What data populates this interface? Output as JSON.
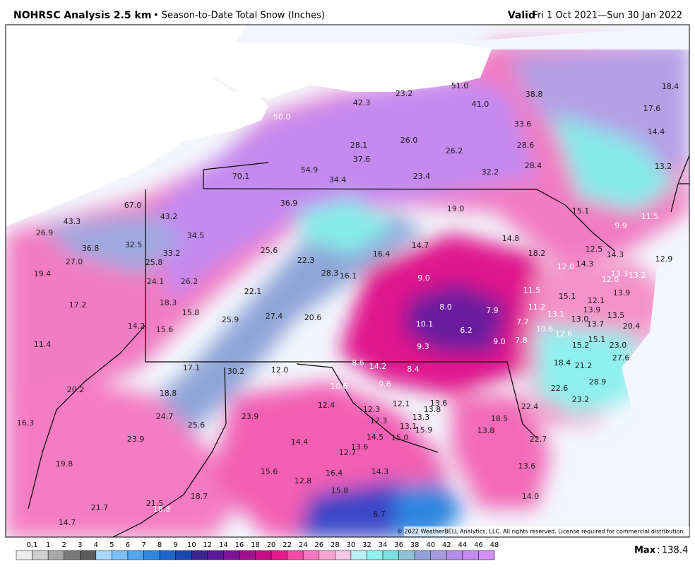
{
  "header": {
    "title": "NOHRSC Analysis 2.5 km",
    "subtitle": "• Season-to-Date Total Snow (Inches)",
    "valid_label": "Valid",
    "valid_range": "Fri 1 Oct 2021—Sun 30 Jan 2022"
  },
  "map": {
    "labels": [
      "18.4",
      "17.6",
      "14.4",
      "13.2",
      "51.0",
      "41.0",
      "38.8",
      "23.2",
      "42.3",
      "50.0",
      "33.6",
      "28.6",
      "28.4",
      "26.0",
      "26.2",
      "28.1",
      "37.6",
      "54.9",
      "34.4",
      "23.4",
      "32.2",
      "70.1",
      "67.0",
      "43.2",
      "36.9",
      "19.0",
      "15.1",
      "9.9",
      "11.5",
      "26.9",
      "43.3",
      "34.5",
      "36.8",
      "32.5",
      "33.2",
      "25.6",
      "22.3",
      "16.4",
      "14.7",
      "14.8",
      "18.2",
      "12.5",
      "14.3",
      "12.9",
      "27.0",
      "19.4",
      "25.8",
      "28.3",
      "16.1",
      "12.0",
      "14.3",
      "13.3",
      "13.2",
      "24.1",
      "26.2",
      "9.0",
      "12.0",
      "13.9",
      "17.2",
      "18.3",
      "22.1",
      "11.5",
      "15.1",
      "12.1",
      "13.9",
      "8.0",
      "7.9",
      "11.2",
      "13.1",
      "13.0",
      "13.5",
      "13.7",
      "15.8",
      "27.4",
      "20.6",
      "25.9",
      "14.2",
      "15.6",
      "10.1",
      "7.7",
      "6.2",
      "10.6",
      "12.6",
      "20.4",
      "15.1",
      "9.0",
      "7.8",
      "15.2",
      "23.0",
      "9.3",
      "11.4",
      "27.6",
      "8.6",
      "14.2",
      "18.4",
      "21.2",
      "17.1",
      "30.2",
      "12.0",
      "8.4",
      "28.9",
      "10.6",
      "9.6",
      "22.6",
      "20.2",
      "18.8",
      "23.2",
      "13.6",
      "12.4",
      "12.1",
      "12.3",
      "13.8",
      "22.4",
      "24.7",
      "23.9",
      "13.3",
      "12.3",
      "18.5",
      "16.3",
      "25.6",
      "13.1",
      "15.9",
      "13.8",
      "14.5",
      "15.0",
      "23.9",
      "14.4",
      "22.7",
      "12.7",
      "13.6",
      "19.8",
      "13.6",
      "15.6",
      "16.4",
      "14.3",
      "12.8",
      "15.8",
      "18.7",
      "14.0",
      "21.5",
      "18.8",
      "21.7",
      "6.7",
      "14.7"
    ],
    "copyright": "© 2022 WeatherBELL Analytics, LLC. All rights reserved. License required for commercial distribution."
  },
  "legend": {
    "labels": [
      "0.1",
      "1",
      "2",
      "3",
      "4",
      "5",
      "6",
      "7",
      "8",
      "9",
      "10",
      "12",
      "14",
      "16",
      "18",
      "20",
      "22",
      "24",
      "26",
      "28",
      "30",
      "32",
      "34",
      "36",
      "38",
      "40",
      "42",
      "44",
      "46",
      "48"
    ],
    "colors": [
      "#ececec",
      "#cfcfcf",
      "#a9a9a9",
      "#7a7a7a",
      "#5c5c5c",
      "#a8d8fb",
      "#7cc0f5",
      "#52a6ee",
      "#2f86e0",
      "#1f66cc",
      "#1848b0",
      "#3a2590",
      "#5a1a9a",
      "#7d1499",
      "#a1108f",
      "#c80e86",
      "#e8168c",
      "#f34aa8",
      "#f677bf",
      "#f7a3d4",
      "#f5c7e6",
      "#b9f0f5",
      "#90f3f0",
      "#7ae0e2",
      "#8fc1d6",
      "#93a3d8",
      "#a59be0",
      "#b48ee8",
      "#c48af0",
      "#d38ff5"
    ]
  },
  "footer": {
    "max_label": "Max",
    "max_value": "138.4"
  }
}
